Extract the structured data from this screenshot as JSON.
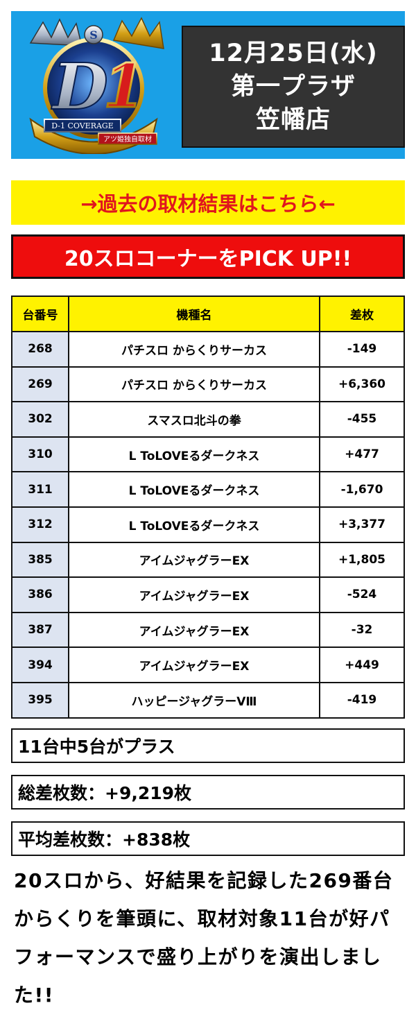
{
  "header": {
    "date": "12月25日(水)",
    "store_line1": "第一プラザ",
    "store_line2": "笠幡店",
    "logo_text": "D-1 COVERAGE",
    "logo_sub": "アツ姫独自取材",
    "logo_badge": "S",
    "colors": {
      "banner": "#1aa0e6",
      "date_box": "#333333"
    }
  },
  "past_link": {
    "label": "→過去の取材結果はこちら←",
    "color": "#e0151e",
    "bg": "#fff200"
  },
  "pickup": {
    "label": "20スロコーナーをPICK UP!!",
    "bg": "#ee0d0d"
  },
  "table": {
    "headers": [
      "台番号",
      "機種名",
      "差枚"
    ],
    "rows": [
      [
        "268",
        "パチスロ からくりサーカス",
        "-149"
      ],
      [
        "269",
        "パチスロ からくりサーカス",
        "+6,360"
      ],
      [
        "302",
        "スマスロ北斗の拳",
        "-455"
      ],
      [
        "310",
        "L ToLOVEるダークネス",
        "+477"
      ],
      [
        "311",
        "L ToLOVEるダークネス",
        "-1,670"
      ],
      [
        "312",
        "L ToLOVEるダークネス",
        "+3,377"
      ],
      [
        "385",
        "アイムジャグラーEX",
        "+1,805"
      ],
      [
        "386",
        "アイムジャグラーEX",
        "-524"
      ],
      [
        "387",
        "アイムジャグラーEX",
        "-32"
      ],
      [
        "394",
        "アイムジャグラーEX",
        "+449"
      ],
      [
        "395",
        "ハッピージャグラーVⅢ",
        "-419"
      ]
    ]
  },
  "summary": {
    "plus_count": "11台中5台がプラス",
    "total": "総差枚数：+9,219枚",
    "average": "平均差枚数：+838枚"
  },
  "description": "20スロから、好結果を記録した269番台からくりを筆頭に、取材対象11台が好パフォーマンスで盛り上がりを演出しました!!"
}
